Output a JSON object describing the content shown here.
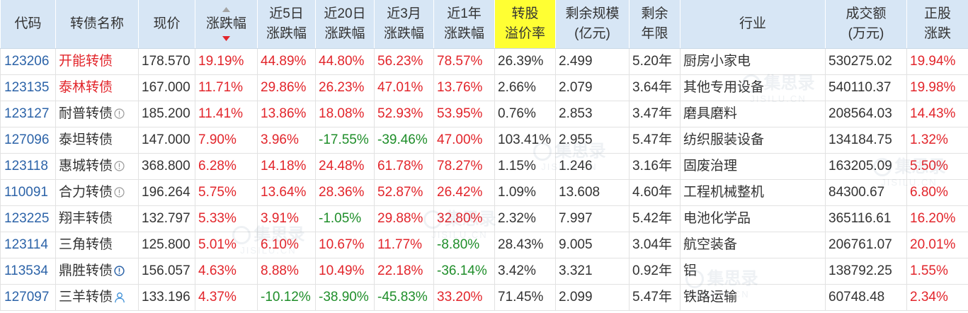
{
  "colors": {
    "header_bg": "#d7e6f5",
    "highlight_bg": "#ffff33",
    "code": "#2c63a8",
    "up": "#e2252b",
    "down": "#1f8e2a",
    "text": "#333333",
    "border": "#e2e2e2"
  },
  "table": {
    "headers": {
      "code": [
        "代码"
      ],
      "name": [
        "转债名称"
      ],
      "price": [
        "现价"
      ],
      "chg": [
        "涨跌幅"
      ],
      "chg5d": [
        "近5日",
        "涨跌幅"
      ],
      "chg20d": [
        "近20日",
        "涨跌幅"
      ],
      "chg3m": [
        "近3月",
        "涨跌幅"
      ],
      "chg1y": [
        "近1年",
        "涨跌幅"
      ],
      "premium": [
        "转股",
        "溢价率"
      ],
      "size": [
        "剩余规模",
        "(亿元)"
      ],
      "years": [
        "剩余",
        "年限"
      ],
      "industry": [
        "行业"
      ],
      "turnover": [
        "成交额",
        "(万元)"
      ],
      "stock_chg": [
        "正股",
        "涨跌"
      ]
    },
    "sort_icons": {
      "up": "sort-up-icon",
      "down": "sort-down-icon"
    },
    "rows": [
      {
        "code": "123206",
        "name": "开能转债",
        "name_color": "#e2252b",
        "price": "178.570",
        "chg": "19.19%",
        "chg5d": "44.89%",
        "chg20d": "44.80%",
        "chg3m": "56.23%",
        "chg1y": "78.57%",
        "premium": "26.39%",
        "size": "2.499",
        "years": "5.20年",
        "industry": "厨房小家电",
        "turnover": "530275.02",
        "stock_chg": "19.94%"
      },
      {
        "code": "123135",
        "name": "泰林转债",
        "name_color": "#e2252b",
        "price": "167.000",
        "chg": "11.71%",
        "chg5d": "29.86%",
        "chg20d": "26.23%",
        "chg3m": "47.01%",
        "chg1y": "13.76%",
        "premium": "2.66%",
        "size": "2.079",
        "years": "3.64年",
        "industry": "其他专用设备",
        "turnover": "540110.37",
        "stock_chg": "19.98%"
      },
      {
        "code": "123127",
        "name": "耐普转债",
        "icon": "alert-icon",
        "price": "185.200",
        "chg": "11.41%",
        "chg5d": "13.86%",
        "chg20d": "18.08%",
        "chg3m": "52.93%",
        "chg1y": "53.95%",
        "premium": "0.76%",
        "size": "2.853",
        "years": "3.47年",
        "industry": "磨具磨料",
        "turnover": "208564.03",
        "stock_chg": "14.43%"
      },
      {
        "code": "127096",
        "name": "泰坦转债",
        "price": "147.000",
        "chg": "7.90%",
        "chg5d": "3.96%",
        "chg20d": "-17.55%",
        "chg3m": "-39.46%",
        "chg1y": "47.00%",
        "premium": "103.41%",
        "size": "2.955",
        "years": "5.47年",
        "industry": "纺织服装设备",
        "turnover": "134184.75",
        "stock_chg": "1.32%"
      },
      {
        "code": "123118",
        "name": "惠城转债",
        "icon": "alert-icon",
        "price": "368.800",
        "chg": "6.28%",
        "chg5d": "14.18%",
        "chg20d": "24.48%",
        "chg3m": "61.78%",
        "chg1y": "78.27%",
        "premium": "1.15%",
        "size": "1.246",
        "years": "3.16年",
        "industry": "固废治理",
        "turnover": "163205.09",
        "stock_chg": "5.50%"
      },
      {
        "code": "110091",
        "name": "合力转债",
        "icon": "alert-icon",
        "price": "196.264",
        "chg": "5.75%",
        "chg5d": "13.64%",
        "chg20d": "28.36%",
        "chg3m": "52.87%",
        "chg1y": "26.42%",
        "premium": "1.09%",
        "size": "13.608",
        "years": "4.60年",
        "industry": "工程机械整机",
        "turnover": "84300.67",
        "stock_chg": "6.80%"
      },
      {
        "code": "123225",
        "name": "翔丰转债",
        "price": "132.797",
        "chg": "5.33%",
        "chg5d": "3.91%",
        "chg20d": "-1.05%",
        "chg3m": "29.88%",
        "chg1y": "32.80%",
        "premium": "2.32%",
        "size": "7.997",
        "years": "5.42年",
        "industry": "电池化学品",
        "turnover": "365116.61",
        "stock_chg": "16.20%"
      },
      {
        "code": "123114",
        "name": "三角转债",
        "price": "125.800",
        "chg": "5.01%",
        "chg5d": "6.10%",
        "chg20d": "10.67%",
        "chg3m": "11.77%",
        "chg1y": "-8.80%",
        "premium": "28.43%",
        "size": "9.005",
        "years": "3.04年",
        "industry": "航空装备",
        "turnover": "206761.07",
        "stock_chg": "20.01%"
      },
      {
        "code": "113534",
        "name": "鼎胜转债",
        "icon": "alert-blue-icon",
        "price": "156.057",
        "chg": "4.63%",
        "chg5d": "8.88%",
        "chg20d": "10.49%",
        "chg3m": "22.18%",
        "chg1y": "-36.14%",
        "premium": "3.42%",
        "size": "3.321",
        "years": "0.92年",
        "industry": "铝",
        "turnover": "138792.25",
        "stock_chg": "1.55%"
      },
      {
        "code": "127097",
        "name": "三羊转债",
        "icon": "user-icon",
        "price": "133.196",
        "chg": "4.37%",
        "chg5d": "-10.12%",
        "chg20d": "-38.90%",
        "chg3m": "-45.83%",
        "chg1y": "33.20%",
        "premium": "71.45%",
        "size": "2.099",
        "years": "5.47年",
        "industry": "铁路运输",
        "turnover": "60748.48",
        "stock_chg": "2.34%"
      }
    ]
  },
  "watermark": {
    "brand": "集思录",
    "domain": "JISILU.CN"
  }
}
